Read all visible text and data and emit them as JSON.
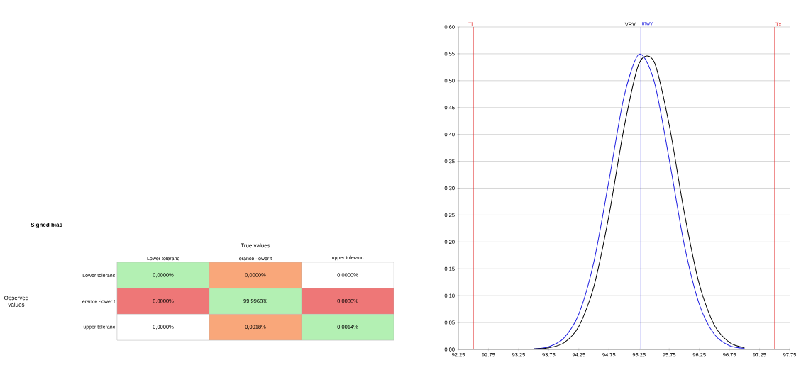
{
  "chart_data": [
    {
      "type": "other",
      "title": "Signed bias",
      "xlabel": "True values",
      "ylabel": "Observed values",
      "categories": [
        "Lower toleranc",
        "erance -lower t",
        "upper toleranc"
      ],
      "y_categories": [
        "Lower toleranc",
        "erance -lower t",
        "upper toleranc"
      ],
      "cell_labels": [
        [
          "0,0000%",
          "0,0000%",
          "0,0000%"
        ],
        [
          "0,0000%",
          "99,9968%",
          "0,0000%"
        ],
        [
          "0,0000%",
          "0,0018%",
          "0,0014%"
        ]
      ],
      "colors": [
        [
          "#b3f0b3",
          "#f9a77a",
          "#ffffff"
        ],
        [
          "#ee7777",
          "#b3f0b3",
          "#ee7777"
        ],
        [
          "#ffffff",
          "#f9a77a",
          "#b3f0b3"
        ]
      ]
    },
    {
      "type": "line",
      "xlim": [
        92.25,
        97.75
      ],
      "ylim": [
        0,
        0.6
      ],
      "xticks": [
        92.25,
        92.75,
        93.25,
        93.75,
        94.25,
        94.75,
        95.25,
        95.75,
        96.25,
        96.75,
        97.25,
        97.75
      ],
      "yticks": [
        {
          "value": 0,
          "label": "0.00"
        },
        {
          "value": 0.05,
          "label": "0.05"
        },
        {
          "value": 0.1,
          "label": "0.10"
        },
        {
          "value": 0.15,
          "label": "0.15"
        },
        {
          "value": 0.2,
          "label": "0.20"
        },
        {
          "value": 0.25,
          "label": "0.25"
        },
        {
          "value": 0.3,
          "label": "0.30"
        },
        {
          "value": 0.35,
          "label": "0.35"
        },
        {
          "value": 0.4,
          "label": "0.40"
        },
        {
          "value": 0.45,
          "label": "0.45"
        },
        {
          "value": 0.5,
          "label": "0.50"
        },
        {
          "value": 0.55,
          "label": "0.55"
        },
        {
          "value": 0.6,
          "label": "0.60"
        }
      ],
      "grid": "y",
      "x": [
        93.5,
        93.75,
        94.0,
        94.25,
        94.5,
        94.75,
        95.0,
        95.25,
        95.5,
        95.75,
        96.0,
        96.25,
        96.5,
        96.75,
        97.0
      ],
      "series": [
        {
          "color": "#2020e0",
          "values": [
            0.001,
            0.005,
            0.021,
            0.066,
            0.163,
            0.314,
            0.47,
            0.549,
            0.499,
            0.354,
            0.195,
            0.084,
            0.028,
            0.007,
            0.002
          ]
        },
        {
          "color": "#000000",
          "values": [
            0.001,
            0.003,
            0.012,
            0.043,
            0.117,
            0.249,
            0.412,
            0.532,
            0.535,
            0.418,
            0.255,
            0.121,
            0.045,
            0.013,
            0.003
          ]
        }
      ],
      "ref_lines": [
        {
          "axis": "x",
          "value": 92.5,
          "label": "Ti",
          "color": "#e02020"
        },
        {
          "axis": "x",
          "value": 95.0,
          "label": "VRV",
          "color": "#000000"
        },
        {
          "axis": "x",
          "value": 95.28,
          "label": "mwy",
          "color": "#2020e0"
        },
        {
          "axis": "x",
          "value": 97.5,
          "label": "Tx",
          "color": "#e02020"
        }
      ]
    }
  ]
}
